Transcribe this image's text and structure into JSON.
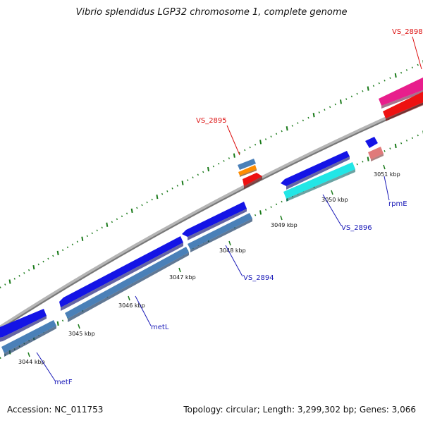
{
  "title": "Vibrio splendidus LGP32 chromosome 1, complete genome",
  "footer": {
    "accession": "Accession: NC_011753",
    "summary": "Topology: circular; Length: 3,299,302 bp; Genes: 3,066"
  },
  "colors": {
    "backbone": "#8a8a8a",
    "tick": "#1a7a1a",
    "gene_blue": "#1414e6",
    "gene_steel": "#4a80b8",
    "gene_cyan": "#22e6e6",
    "gene_red": "#ee1111",
    "gene_pink": "#e81e8c",
    "gene_orange": "#ff8c00",
    "gene_salmon": "#e07a7a",
    "label_blue": "#1a1ab8",
    "label_red": "#dd1111"
  },
  "scale_labels": [
    "3044 kbp",
    "3045 kbp",
    "3046 kbp",
    "3047 kbp",
    "3048 kbp",
    "3049 kbp",
    "3050 kbp",
    "3051 kbp"
  ],
  "gene_labels": [
    "metF",
    "metL",
    "VS_2894",
    "VS_2896",
    "rpmE",
    "VS_2895",
    "VS_2898"
  ]
}
